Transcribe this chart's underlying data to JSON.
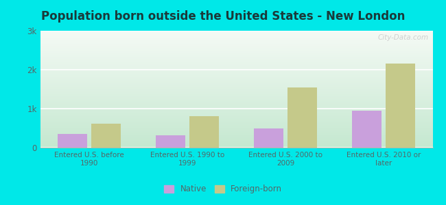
{
  "title": "Population born outside the United States - New London",
  "categories": [
    "Entered U.S. before\n1990",
    "Entered U.S. 1990 to\n1999",
    "Entered U.S. 2000 to\n2009",
    "Entered U.S. 2010 or\nlater"
  ],
  "native_values": [
    350,
    320,
    500,
    950
  ],
  "foreign_values": [
    620,
    800,
    1550,
    2150
  ],
  "native_color": "#c9a0dc",
  "foreign_color": "#c5c98a",
  "background_outer": "#00e8e8",
  "background_top": "#c5e8d0",
  "background_bottom": "#f5faf5",
  "grid_color": "#e0e8e0",
  "ylim": [
    0,
    3000
  ],
  "yticks": [
    0,
    1000,
    2000,
    3000
  ],
  "title_fontsize": 12,
  "label_fontsize": 7.5,
  "tick_fontsize": 8.5,
  "legend_fontsize": 8.5,
  "title_color": "#1a3a3a",
  "tick_color": "#556666",
  "watermark": "City-Data.com",
  "bar_width": 0.3
}
